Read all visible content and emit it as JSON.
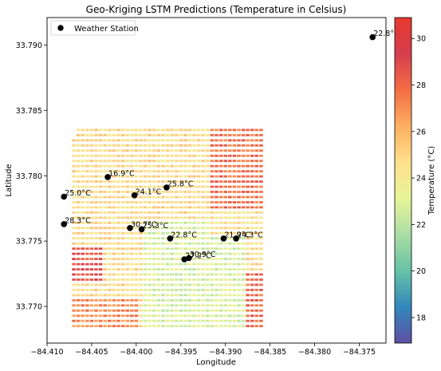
{
  "chart_data": {
    "type": "scatter",
    "title": "Geo-Kriging LSTM Predictions (Temperature in Celsius)",
    "xlabel": "Longitude",
    "ylabel": "Latitude",
    "xlim": [
      -84.41,
      -84.372
    ],
    "ylim": [
      33.7672,
      33.7921
    ],
    "x_ticks": [
      -84.41,
      -84.405,
      -84.4,
      -84.395,
      -84.39,
      -84.385,
      -84.38,
      -84.375
    ],
    "x_tick_labels": [
      "−84.410",
      "−84.405",
      "−84.400",
      "−84.395",
      "−84.390",
      "−84.385",
      "−84.380",
      "−84.375"
    ],
    "y_ticks": [
      33.77,
      33.775,
      33.78,
      33.785,
      33.79
    ],
    "y_tick_labels": [
      "33.770",
      "33.775",
      "33.780",
      "33.785",
      "33.790"
    ],
    "legend": {
      "position": "upper-left",
      "label": "Weather Station"
    },
    "colorbar": {
      "label": "Temperature (°C)",
      "min": 16.9,
      "max": 30.9,
      "ticks": [
        18,
        20,
        22,
        24,
        26,
        28,
        30
      ],
      "tick_labels": [
        "18",
        "20",
        "22",
        "24",
        "26",
        "28",
        "30"
      ],
      "colormap": "Spectral_r",
      "colors": [
        "#5e4fa2",
        "#3288bd",
        "#66c2a5",
        "#abdda4",
        "#e6f598",
        "#fee08b",
        "#fdae61",
        "#f46d43",
        "#d53e4f",
        "#e8392c"
      ]
    },
    "prediction_grid": {
      "lon_min": -84.407,
      "lon_max": -84.386,
      "lat_min": 33.7685,
      "lat_max": 33.7835,
      "top_left_lon": -84.3954,
      "top_right_lon": -84.3867,
      "cols": 43,
      "rows": 39,
      "zones": [
        {
          "lon": [
            -84.3915,
            -84.386
          ],
          "lat": [
            33.7773,
            33.7835
          ],
          "temp": 27.8
        },
        {
          "lon": [
            -84.3915,
            -84.386
          ],
          "lat": [
            33.7755,
            33.7773
          ],
          "temp": 24.5
        },
        {
          "lon": [
            -84.407,
            -84.404
          ],
          "lat": [
            33.7718,
            33.7745
          ],
          "temp": 28.6
        },
        {
          "lon": [
            -84.407,
            -84.3995
          ],
          "lat": [
            33.7685,
            33.7705
          ],
          "temp": 27.2
        },
        {
          "lon": [
            -84.4015,
            -84.3995
          ],
          "lat": [
            33.7685,
            33.7692
          ],
          "temp": 18.5
        },
        {
          "lon": [
            -84.3875,
            -84.386
          ],
          "lat": [
            33.7685,
            33.7725
          ],
          "temp": 28.0
        },
        {
          "lon": [
            -84.399,
            -84.3875
          ],
          "lat": [
            33.7685,
            33.7765
          ],
          "temp": 22.8
        }
      ],
      "default_temp": 24.8
    },
    "stations": [
      {
        "lon": -84.3735,
        "lat": 33.7906,
        "label": "22.8°C"
      },
      {
        "lon": -84.4032,
        "lat": 33.7799,
        "label": "16.9°C"
      },
      {
        "lon": -84.3966,
        "lat": 33.7791,
        "label": "25.8°C"
      },
      {
        "lon": -84.4002,
        "lat": 33.7785,
        "label": "24.1°C"
      },
      {
        "lon": -84.4081,
        "lat": 33.7784,
        "label": "25.0°C"
      },
      {
        "lon": -84.4081,
        "lat": 33.7763,
        "label": "28.3°C"
      },
      {
        "lon": -84.4007,
        "lat": 33.776,
        "label": "30.7°C"
      },
      {
        "lon": -84.3994,
        "lat": 33.7759,
        "label": "25.3°C"
      },
      {
        "lon": -84.3962,
        "lat": 33.7752,
        "label": "22.8°C"
      },
      {
        "lon": -84.3902,
        "lat": 33.7752,
        "label": "21.9°C"
      },
      {
        "lon": -84.3888,
        "lat": 33.7752,
        "label": "24.3°C"
      },
      {
        "lon": -84.3946,
        "lat": 33.7736,
        "label": "27.2°C"
      },
      {
        "lon": -84.3941,
        "lat": 33.7737,
        "label": "30.9°C"
      }
    ]
  }
}
